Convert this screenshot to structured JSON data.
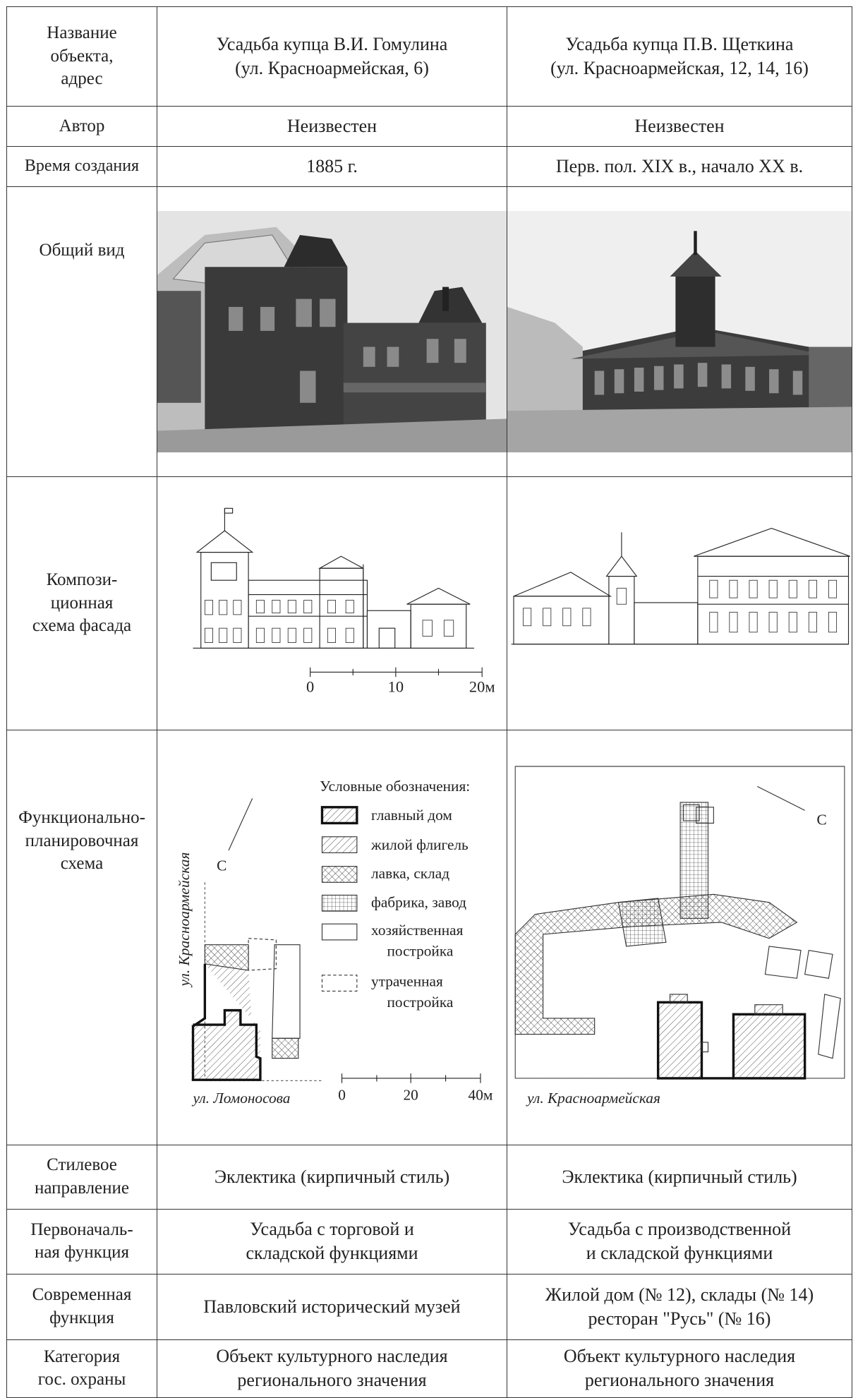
{
  "table": {
    "rows": [
      [
        "Название\nобъекта,\nадрес",
        "Усадьба купца В.И. Гомулина\n(ул. Красноармейская, 6)",
        "Усадьба купца П.В. Щеткина\n(ул. Красноармейская, 12, 14, 16)"
      ],
      [
        "Автор",
        "Неизвестен",
        "Неизвестен"
      ],
      [
        "Время создания",
        "1885 г.",
        "Перв. пол. XIX в., начало XX в."
      ],
      [
        "Общий вид"
      ],
      [
        "Компози-\nционная\nсхема фасада"
      ],
      [
        "Функционально-\nпланировочная\nсхема"
      ],
      [
        "Стилевое\nнаправление",
        "Эклектика (кирпичный стиль)",
        "Эклектика (кирпичный стиль)"
      ],
      [
        "Первоначаль-\nная функция",
        "Усадьба с торговой и\nскладской функциями",
        "Усадьба с производственной\nи складской функциями"
      ],
      [
        "Современная\nфункция",
        "Павловский исторический музей",
        "Жилой дом (№ 12), склады (№ 14)\nресторан \"Русь\" (№ 16)"
      ],
      [
        "Категория\nгос. охраны",
        "Объект культурного наследия\nрегионального значения",
        "Объект культурного наследия\nрегионального значения"
      ]
    ]
  },
  "facade_scale": [
    "0",
    "10",
    "20м"
  ],
  "legend": {
    "title": "Условные обозначения:",
    "items": [
      [
        "главный дом"
      ],
      [
        "жилой флигель"
      ],
      [
        "лавка, склад"
      ],
      [
        "фабрика, завод"
      ],
      [
        "хозяйственная",
        "постройка"
      ],
      [
        "утраченная",
        "постройка"
      ]
    ]
  },
  "plan_left": {
    "street_vertical": "ул. Красноармейская",
    "street_bottom": "ул. Ломоносова",
    "north": "С",
    "scale": [
      "0",
      "20",
      "40м"
    ]
  },
  "plan_right": {
    "street": "ул. Красноармейская",
    "north": "С"
  }
}
